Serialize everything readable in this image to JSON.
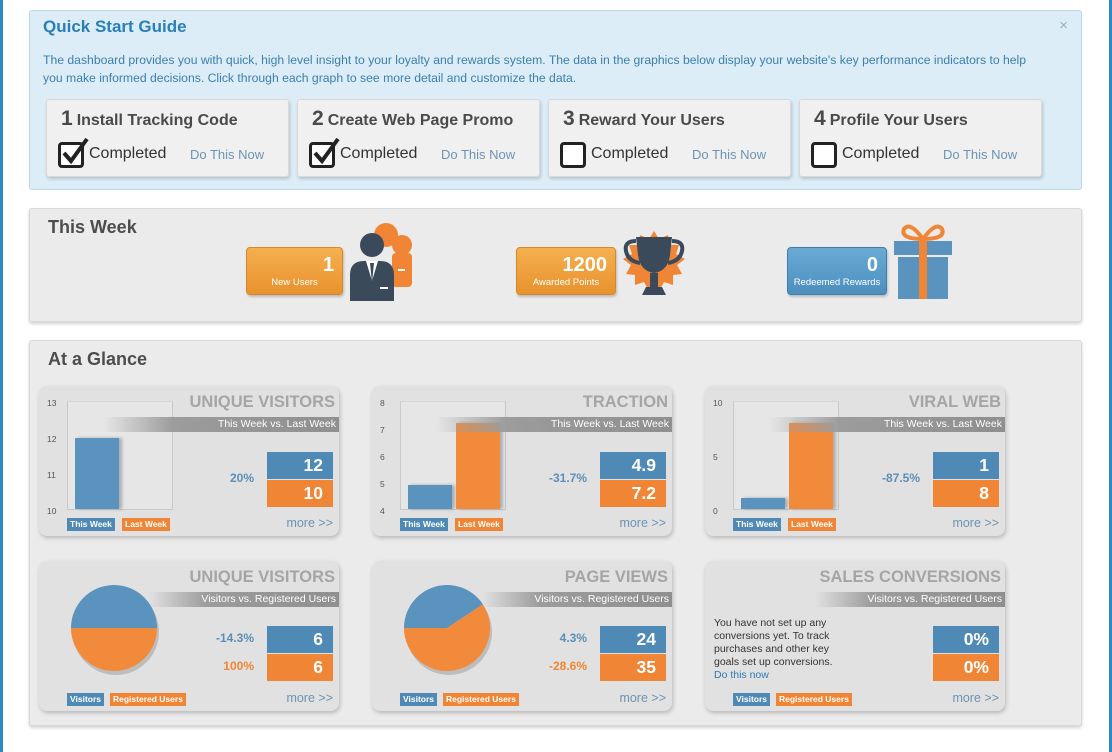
{
  "quick_start": {
    "title": "Quick Start Guide",
    "close": "×",
    "description": "The dashboard provides you with quick, high level insight to your loyalty and rewards system. The data in the graphics below display your website's key performance indicators to help you make informed decisions. Click through each graph to see more detail and customize the data.",
    "steps": [
      {
        "num": "1",
        "label": "Install Tracking Code",
        "status": "Completed",
        "checked": true,
        "link": "Do This Now"
      },
      {
        "num": "2",
        "label": "Create Web Page Promo",
        "status": "Completed",
        "checked": true,
        "link": "Do This Now"
      },
      {
        "num": "3",
        "label": "Reward Your Users",
        "status": "Completed",
        "checked": false,
        "link": "Do This Now"
      },
      {
        "num": "4",
        "label": "Profile Your Users",
        "status": "Completed",
        "checked": false,
        "link": "Do This Now"
      }
    ]
  },
  "this_week": {
    "title": "This Week",
    "new_users": {
      "value": "1",
      "label": "New Users"
    },
    "awarded_points": {
      "value": "1200",
      "label": "Awarded Points"
    },
    "redeemed_rewards": {
      "value": "0",
      "label": "Redeemed Rewards"
    }
  },
  "at_a_glance": {
    "title": "At a Glance",
    "more": "more >>",
    "legend_this_week": "This Week",
    "legend_last_week": "Last Week",
    "legend_visitors": "Visitors",
    "legend_registered": "Registered Users",
    "unique_visitors": {
      "title": "UNIQUE VISITORS",
      "subtitle": "This Week vs. Last Week",
      "change": "20%",
      "this_week": "12",
      "last_week": "10"
    },
    "traction": {
      "title": "TRACTION",
      "subtitle": "This Week vs. Last Week",
      "change": "-31.7%",
      "this_week": "4.9",
      "last_week": "7.2"
    },
    "viral_web": {
      "title": "VIRAL WEB",
      "subtitle": "This Week vs. Last Week",
      "change": "-87.5%",
      "this_week": "1",
      "last_week": "8"
    },
    "unique_visitors_reg": {
      "title": "UNIQUE VISITORS",
      "subtitle": "Visitors vs. Registered Users",
      "change_visitors": "-14.3%",
      "change_registered": "100%",
      "visitors": "6",
      "registered": "6"
    },
    "page_views": {
      "title": "PAGE VIEWS",
      "subtitle": "Visitors vs. Registered Users",
      "change_visitors": "4.3%",
      "change_registered": "-28.6%",
      "visitors": "24",
      "registered": "35"
    },
    "sales_conversions": {
      "title": "SALES CONVERSIONS",
      "subtitle": "Visitors vs. Registered Users",
      "message": "You have not set up any conversions yet. To track purchases and other key goals set up conversions.",
      "link": "Do this now",
      "visitors": "0%",
      "registered": "0%"
    }
  },
  "chart_data": [
    {
      "type": "bar",
      "title": "UNIQUE VISITORS",
      "subtitle": "This Week vs. Last Week",
      "categories": [
        "This Week",
        "Last Week"
      ],
      "values": [
        12,
        10
      ],
      "ylim": [
        10,
        13
      ],
      "yticks": [
        "13",
        "12",
        "11",
        "10"
      ]
    },
    {
      "type": "bar",
      "title": "TRACTION",
      "subtitle": "This Week vs. Last Week",
      "categories": [
        "This Week",
        "Last Week"
      ],
      "values": [
        4.9,
        7.2
      ],
      "ylim": [
        4,
        8
      ],
      "yticks": [
        "8",
        "7",
        "6",
        "5",
        "4"
      ]
    },
    {
      "type": "bar",
      "title": "VIRAL WEB",
      "subtitle": "This Week vs. Last Week",
      "categories": [
        "This Week",
        "Last Week"
      ],
      "values": [
        1,
        8
      ],
      "ylim": [
        0,
        10
      ],
      "yticks": [
        "10",
        "5",
        "0"
      ]
    },
    {
      "type": "pie",
      "title": "UNIQUE VISITORS",
      "subtitle": "Visitors vs. Registered Users",
      "categories": [
        "Visitors",
        "Registered Users"
      ],
      "values": [
        6,
        6
      ]
    },
    {
      "type": "pie",
      "title": "PAGE VIEWS",
      "subtitle": "Visitors vs. Registered Users",
      "categories": [
        "Visitors",
        "Registered Users"
      ],
      "values": [
        24,
        35
      ]
    }
  ],
  "colors": {
    "blue": "#4f8ab7",
    "orange": "#f08535",
    "accent": "#2a7fb8"
  }
}
